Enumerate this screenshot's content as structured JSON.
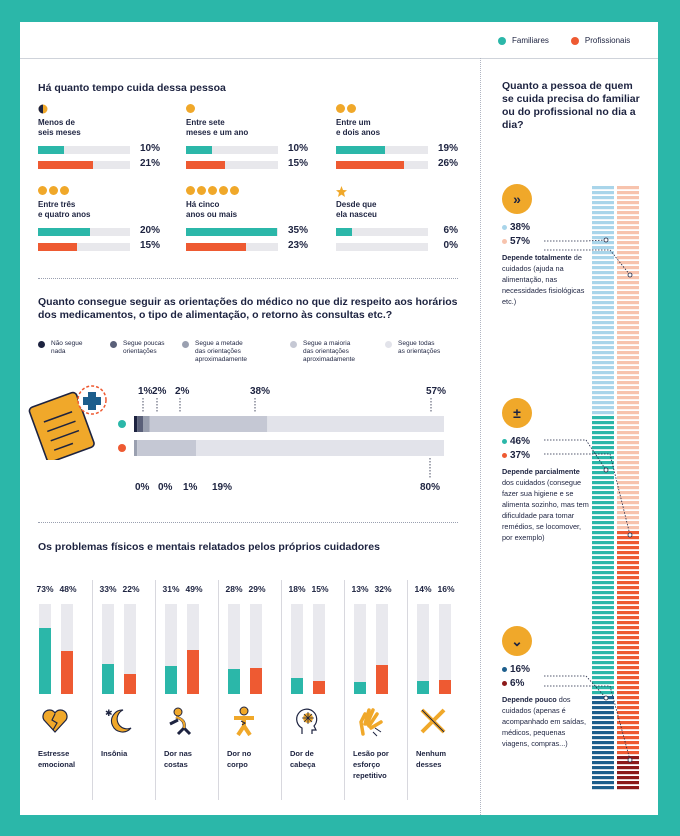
{
  "legend": {
    "familiares": "Familiares",
    "profissionais": "Profissionais"
  },
  "colors": {
    "teal": "#2bb7a9",
    "orange": "#ee5a32",
    "navy": "#1d2340",
    "yellow": "#f0a82a",
    "light_blue": "#a9d5ea",
    "light_orange": "#f7c3ad",
    "dark_blue": "#1d5e8c",
    "dark_red": "#8c1a1a"
  },
  "tenure": {
    "title": "Há quanto tempo cuida dessa pessoa",
    "items": [
      {
        "label1": "Menos de",
        "label2": "seis meses",
        "fam": "10%",
        "pro": "21%"
      },
      {
        "label1": "Entre sete",
        "label2": "meses e um ano",
        "fam": "10%",
        "pro": "15%"
      },
      {
        "label1": "Entre um",
        "label2": "e dois anos",
        "fam": "19%",
        "pro": "26%"
      },
      {
        "label1": "Entre três",
        "label2": "e quatro anos",
        "fam": "20%",
        "pro": "15%"
      },
      {
        "label1": "Há cinco",
        "label2": "anos ou mais",
        "fam": "35%",
        "pro": "23%"
      },
      {
        "label1": "Desde que",
        "label2": "ela nasceu",
        "fam": "6%",
        "pro": "0%"
      }
    ]
  },
  "adherence": {
    "title1": "Quanto consegue seguir as orientações do médico no que diz respeito aos horários",
    "title2": "dos medicamentos, o tipo de alimentação, o retorno às consultas etc.?",
    "legend": [
      {
        "l1": "Não segue",
        "l2": "nada",
        "l3": ""
      },
      {
        "l1": "Segue poucas",
        "l2": "orientações",
        "l3": ""
      },
      {
        "l1": "Segue a metade",
        "l2": "das orientações",
        "l3": "aproximadamente"
      },
      {
        "l1": "Segue a maioria",
        "l2": "das orientações",
        "l3": "aproximadamente"
      },
      {
        "l1": "Segue todas",
        "l2": "as orientações",
        "l3": ""
      }
    ],
    "fam_labels": [
      "1%",
      "2%",
      "2%",
      "38%",
      "57%"
    ],
    "pro_labels": [
      "0%",
      "0%",
      "1%",
      "19%",
      "80%"
    ]
  },
  "problems": {
    "title": "Os problemas físicos e mentais relatados pelos próprios cuidadores",
    "items": [
      {
        "fam": "73%",
        "pro": "48%",
        "l1": "Estresse",
        "l2": "emocional",
        "l3": "",
        "icon": "broken-heart-icon"
      },
      {
        "fam": "33%",
        "pro": "22%",
        "l1": "Insônia",
        "l2": "",
        "l3": "",
        "icon": "moon-icon"
      },
      {
        "fam": "31%",
        "pro": "49%",
        "l1": "Dor nas",
        "l2": "costas",
        "l3": "",
        "icon": "back-pain-icon"
      },
      {
        "fam": "28%",
        "pro": "29%",
        "l1": "Dor no",
        "l2": "corpo",
        "l3": "",
        "icon": "body-pain-icon"
      },
      {
        "fam": "18%",
        "pro": "15%",
        "l1": "Dor de",
        "l2": "cabeça",
        "l3": "",
        "icon": "headache-icon"
      },
      {
        "fam": "13%",
        "pro": "32%",
        "l1": "Lesão por",
        "l2": "esforço",
        "l3": "repetitivo",
        "icon": "hand-injury-icon"
      },
      {
        "fam": "14%",
        "pro": "16%",
        "l1": "Nenhum",
        "l2": "desses",
        "l3": "",
        "icon": "x-mark-icon"
      }
    ]
  },
  "dependence": {
    "title": "Quanto a pessoa de quem se cuida precisa do familiar ou do profissional no dia a dia?",
    "groups": [
      {
        "fam": "38%",
        "pro": "57%",
        "desc_bold": "Depende totalmente",
        "desc": "de cuidados (ajuda na alimentação, nas necessidades fisiológicas etc.)",
        "symbol": "»"
      },
      {
        "fam": "46%",
        "pro": "37%",
        "desc_bold": "Depende parcialmente",
        "desc": "dos cuidados (consegue fazer sua higiene e se alimenta sozinho, mas tem dificuldade para tomar remédios, se locomover, por exemplo)",
        "symbol": "±"
      },
      {
        "fam": "16%",
        "pro": "6%",
        "desc_bold": "Depende pouco",
        "desc": "dos cuidados (apenas é acompanhado em saídas, médicos, pequenas viagens, compras...)",
        "symbol": "⌄"
      }
    ]
  },
  "chart_data": [
    {
      "type": "bar",
      "title": "Há quanto tempo cuida dessa pessoa",
      "categories": [
        "Menos de seis meses",
        "Entre sete meses e um ano",
        "Entre um e dois anos",
        "Entre três e quatro anos",
        "Há cinco anos ou mais",
        "Desde que ela nasceu"
      ],
      "series": [
        {
          "name": "Familiares",
          "values": [
            10,
            10,
            19,
            20,
            35,
            6
          ]
        },
        {
          "name": "Profissionais",
          "values": [
            21,
            15,
            26,
            15,
            23,
            0
          ]
        }
      ]
    },
    {
      "type": "bar",
      "title": "Quanto consegue seguir as orientações do médico no que diz respeito aos horários dos medicamentos, o tipo de alimentação, o retorno às consultas etc.?",
      "categories": [
        "Não segue nada",
        "Segue poucas orientações",
        "Segue a metade das orientações aproximadamente",
        "Segue a maioria das orientações aproximadamente",
        "Segue todas as orientações"
      ],
      "series": [
        {
          "name": "Familiares",
          "values": [
            1,
            2,
            2,
            38,
            57
          ]
        },
        {
          "name": "Profissionais",
          "values": [
            0,
            0,
            1,
            19,
            80
          ]
        }
      ]
    },
    {
      "type": "bar",
      "title": "Os problemas físicos e mentais relatados pelos próprios cuidadores",
      "categories": [
        "Estresse emocional",
        "Insônia",
        "Dor nas costas",
        "Dor no corpo",
        "Dor de cabeça",
        "Lesão por esforço repetitivo",
        "Nenhum desses"
      ],
      "series": [
        {
          "name": "Familiares",
          "values": [
            73,
            33,
            31,
            28,
            18,
            13,
            14
          ]
        },
        {
          "name": "Profissionais",
          "values": [
            48,
            22,
            49,
            29,
            15,
            32,
            16
          ]
        }
      ],
      "ylim": [
        0,
        100
      ]
    },
    {
      "type": "bar",
      "title": "Quanto a pessoa de quem se cuida precisa do familiar ou do profissional no dia a dia?",
      "categories": [
        "Depende totalmente de cuidados",
        "Depende parcialmente dos cuidados",
        "Depende pouco dos cuidados"
      ],
      "series": [
        {
          "name": "Familiares",
          "values": [
            38,
            46,
            16
          ]
        },
        {
          "name": "Profissionais",
          "values": [
            57,
            37,
            6
          ]
        }
      ]
    }
  ]
}
